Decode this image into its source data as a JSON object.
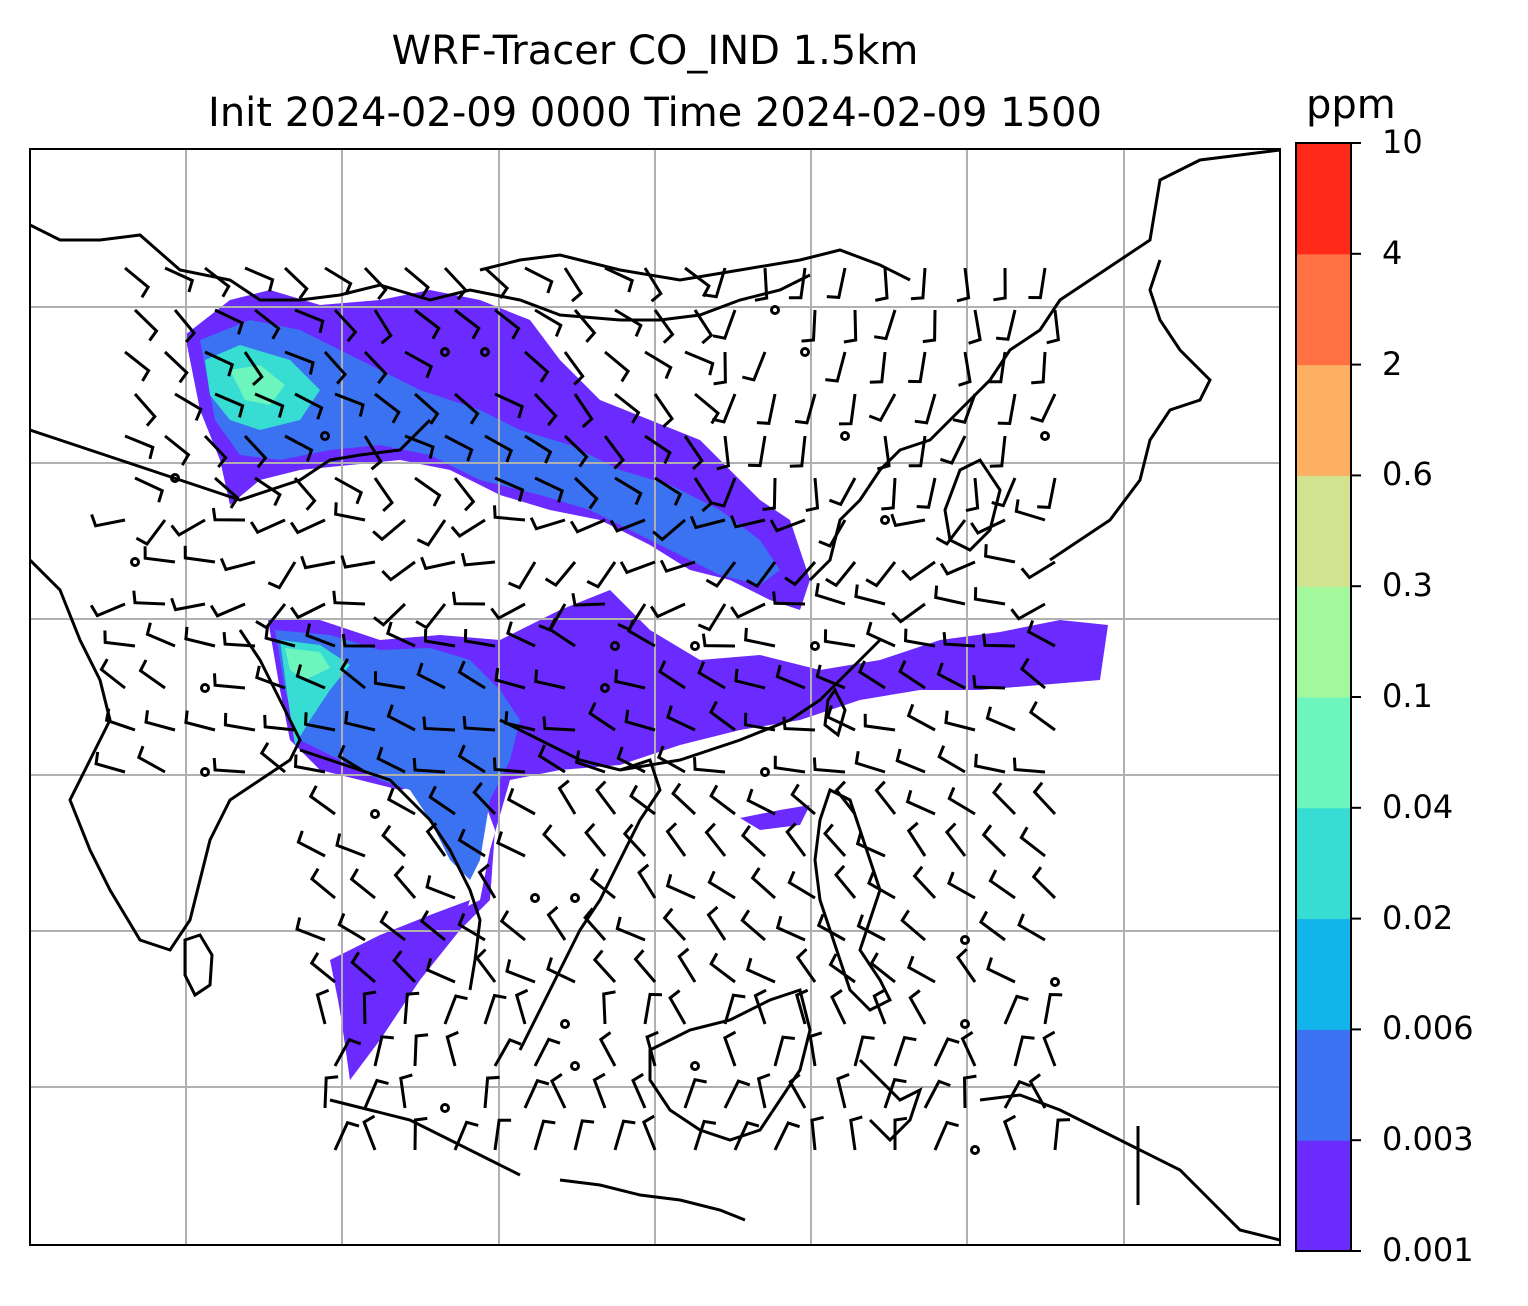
{
  "title": {
    "line1": "WRF-Tracer CO_IND 1.5km",
    "line2": "Init 2024-02-09 0000 Time 2024-02-09 1500"
  },
  "colorbar": {
    "unit": "ppm",
    "levels": [
      "0.001",
      "0.003",
      "0.006",
      "0.02",
      "0.04",
      "0.1",
      "0.3",
      "0.6",
      "2",
      "4",
      "10"
    ],
    "colors": [
      "#6b2bff",
      "#3a72f2",
      "#12b4ea",
      "#37dcd2",
      "#6cf6be",
      "#a4f89c",
      "#d2e28e",
      "#fdb062",
      "#ff7042",
      "#ff2a1a"
    ]
  },
  "map": {
    "projection": "lat-lon",
    "gridlines": true,
    "coastlines": true,
    "wind_barbs": true,
    "region": "Asia"
  }
}
